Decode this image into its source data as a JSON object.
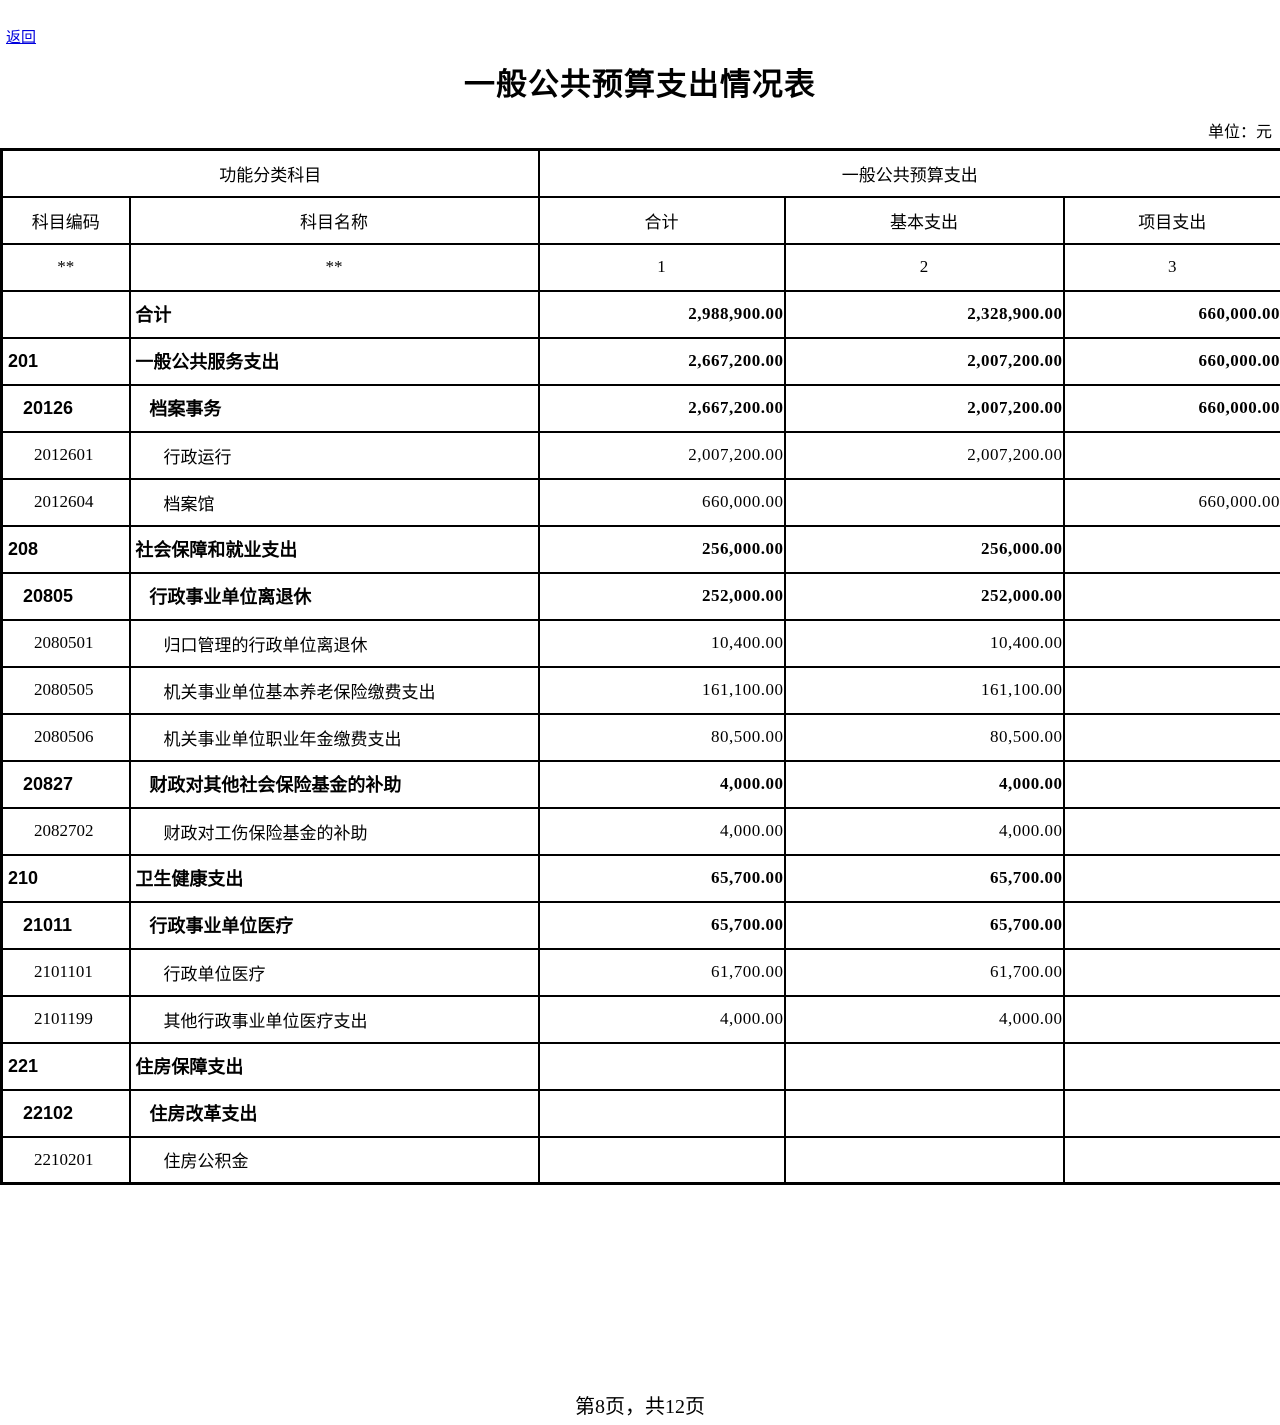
{
  "page": {
    "back_link": "返回",
    "title": "一般公共预算支出情况表",
    "unit_label": "单位：元",
    "footer": "第8页，共12页"
  },
  "table": {
    "header": {
      "group_function": "功能分类科目",
      "group_budget": "一般公共预算支出",
      "col_code": "科目编码",
      "col_name": "科目名称",
      "col_total": "合计",
      "col_basic": "基本支出",
      "col_project": "项目支出",
      "star_code": "**",
      "star_name": "**",
      "num_total": "1",
      "num_basic": "2",
      "num_project": "3"
    },
    "rows": [
      {
        "code": "",
        "name": "合计",
        "total": "2,988,900.00",
        "basic": "2,328,900.00",
        "project": "660,000.00",
        "level": 0,
        "bold": true
      },
      {
        "code": "201",
        "name": "一般公共服务支出",
        "total": "2,667,200.00",
        "basic": "2,007,200.00",
        "project": "660,000.00",
        "level": 1,
        "bold": true
      },
      {
        "code": "20126",
        "name": "档案事务",
        "total": "2,667,200.00",
        "basic": "2,007,200.00",
        "project": "660,000.00",
        "level": 2,
        "bold": true
      },
      {
        "code": "2012601",
        "name": "行政运行",
        "total": "2,007,200.00",
        "basic": "2,007,200.00",
        "project": "",
        "level": 3,
        "bold": false
      },
      {
        "code": "2012604",
        "name": "档案馆",
        "total": "660,000.00",
        "basic": "",
        "project": "660,000.00",
        "level": 3,
        "bold": false
      },
      {
        "code": "208",
        "name": "社会保障和就业支出",
        "total": "256,000.00",
        "basic": "256,000.00",
        "project": "",
        "level": 1,
        "bold": true
      },
      {
        "code": "20805",
        "name": "行政事业单位离退休",
        "total": "252,000.00",
        "basic": "252,000.00",
        "project": "",
        "level": 2,
        "bold": true
      },
      {
        "code": "2080501",
        "name": "归口管理的行政单位离退休",
        "total": "10,400.00",
        "basic": "10,400.00",
        "project": "",
        "level": 3,
        "bold": false
      },
      {
        "code": "2080505",
        "name": "机关事业单位基本养老保险缴费支出",
        "total": "161,100.00",
        "basic": "161,100.00",
        "project": "",
        "level": 3,
        "bold": false
      },
      {
        "code": "2080506",
        "name": "机关事业单位职业年金缴费支出",
        "total": "80,500.00",
        "basic": "80,500.00",
        "project": "",
        "level": 3,
        "bold": false
      },
      {
        "code": "20827",
        "name": "财政对其他社会保险基金的补助",
        "total": "4,000.00",
        "basic": "4,000.00",
        "project": "",
        "level": 2,
        "bold": true
      },
      {
        "code": "2082702",
        "name": "财政对工伤保险基金的补助",
        "total": "4,000.00",
        "basic": "4,000.00",
        "project": "",
        "level": 3,
        "bold": false
      },
      {
        "code": "210",
        "name": "卫生健康支出",
        "total": "65,700.00",
        "basic": "65,700.00",
        "project": "",
        "level": 1,
        "bold": true
      },
      {
        "code": "21011",
        "name": "行政事业单位医疗",
        "total": "65,700.00",
        "basic": "65,700.00",
        "project": "",
        "level": 2,
        "bold": true
      },
      {
        "code": "2101101",
        "name": "行政单位医疗",
        "total": "61,700.00",
        "basic": "61,700.00",
        "project": "",
        "level": 3,
        "bold": false
      },
      {
        "code": "2101199",
        "name": "其他行政事业单位医疗支出",
        "total": "4,000.00",
        "basic": "4,000.00",
        "project": "",
        "level": 3,
        "bold": false
      },
      {
        "code": "221",
        "name": "住房保障支出",
        "total": "",
        "basic": "",
        "project": "",
        "level": 1,
        "bold": true
      },
      {
        "code": "22102",
        "name": "住房改革支出",
        "total": "",
        "basic": "",
        "project": "",
        "level": 2,
        "bold": true
      },
      {
        "code": "2210201",
        "name": "住房公积金",
        "total": "",
        "basic": "",
        "project": "",
        "level": 3,
        "bold": false
      }
    ]
  }
}
